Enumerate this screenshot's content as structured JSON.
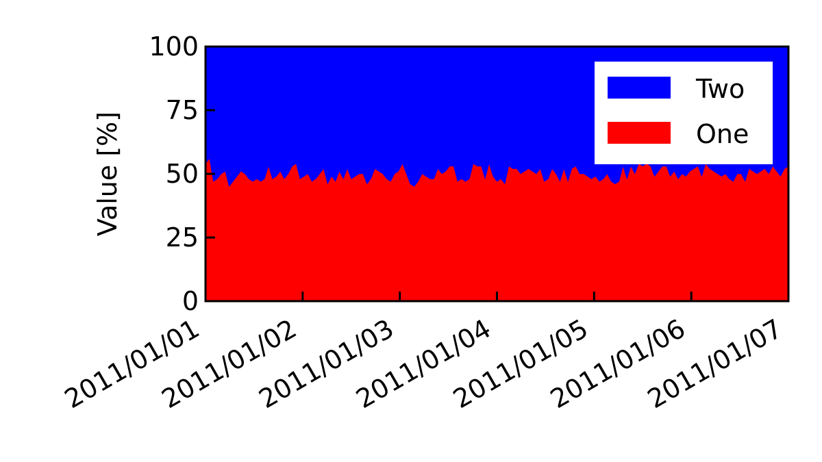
{
  "chart_data": {
    "type": "area",
    "stacked": true,
    "title": "",
    "xlabel": "",
    "ylabel": "Value [%]",
    "ylim": [
      0,
      100
    ],
    "yticks": [
      0,
      25,
      50,
      75,
      100
    ],
    "xlim": [
      "2011-01-01 00:00",
      "2011-01-07 00:00"
    ],
    "xticks": [
      "2011-01-01",
      "2011-01-02",
      "2011-01-03",
      "2011-01-04",
      "2011-01-05",
      "2011-01-06",
      "2011-01-07"
    ],
    "xtick_labels": [
      "2011/01/01",
      "2011/01/02",
      "2011/01/03",
      "2011/01/04",
      "2011/01/05",
      "2011/01/06",
      "2011/01/07"
    ],
    "x_sampling": "hourly",
    "grid": false,
    "legend_position": "top-right",
    "series": [
      {
        "name": "One",
        "color": "#ff0000",
        "values": [
          54,
          56,
          47,
          48,
          50,
          51,
          45,
          47,
          49,
          51,
          50,
          48,
          47,
          48,
          47,
          48,
          53,
          48,
          49,
          51,
          48,
          50,
          53,
          54,
          48,
          49,
          50,
          47,
          48,
          50,
          52,
          46,
          49,
          47,
          51,
          48,
          52,
          48,
          49,
          50,
          50,
          46,
          48,
          52,
          51,
          50,
          48,
          47,
          50,
          51,
          54,
          50,
          46,
          45,
          47,
          50,
          49,
          48,
          48,
          52,
          50,
          51,
          53,
          53,
          47,
          48,
          47,
          48,
          54,
          53,
          53,
          48,
          54,
          49,
          47,
          48,
          46,
          53,
          52,
          52,
          50,
          51,
          52,
          51,
          50,
          52,
          47,
          48,
          52,
          50,
          47,
          52,
          47,
          52,
          53,
          50,
          50,
          49,
          48,
          49,
          47,
          48,
          50,
          47,
          46,
          47,
          53,
          48,
          53,
          50,
          54,
          53,
          54,
          53,
          49,
          51,
          53,
          53,
          49,
          51,
          48,
          50,
          49,
          51,
          52,
          53,
          49,
          54,
          52,
          51,
          50,
          49,
          50,
          48,
          47,
          50,
          50,
          47,
          52,
          51,
          50,
          51,
          52,
          50,
          53,
          51,
          49,
          52,
          53
        ]
      },
      {
        "name": "Two",
        "color": "#0000ff",
        "values": [
          46,
          44,
          53,
          52,
          50,
          49,
          55,
          53,
          51,
          49,
          50,
          52,
          53,
          52,
          53,
          52,
          47,
          52,
          51,
          49,
          52,
          50,
          47,
          46,
          52,
          51,
          50,
          53,
          52,
          50,
          48,
          54,
          51,
          53,
          49,
          52,
          48,
          52,
          51,
          50,
          50,
          54,
          52,
          48,
          49,
          50,
          52,
          53,
          50,
          49,
          46,
          50,
          54,
          55,
          53,
          50,
          51,
          52,
          52,
          48,
          50,
          49,
          47,
          47,
          53,
          52,
          53,
          52,
          46,
          47,
          47,
          52,
          46,
          51,
          53,
          52,
          54,
          47,
          48,
          48,
          50,
          49,
          48,
          49,
          50,
          48,
          53,
          52,
          48,
          50,
          53,
          48,
          53,
          48,
          47,
          50,
          50,
          51,
          52,
          51,
          53,
          52,
          50,
          53,
          54,
          53,
          47,
          52,
          47,
          50,
          46,
          47,
          46,
          47,
          51,
          49,
          47,
          47,
          51,
          49,
          52,
          50,
          51,
          49,
          48,
          47,
          51,
          46,
          48,
          49,
          50,
          51,
          50,
          52,
          53,
          50,
          50,
          53,
          48,
          49,
          50,
          49,
          48,
          50,
          47,
          49,
          51,
          48,
          47
        ]
      }
    ]
  }
}
